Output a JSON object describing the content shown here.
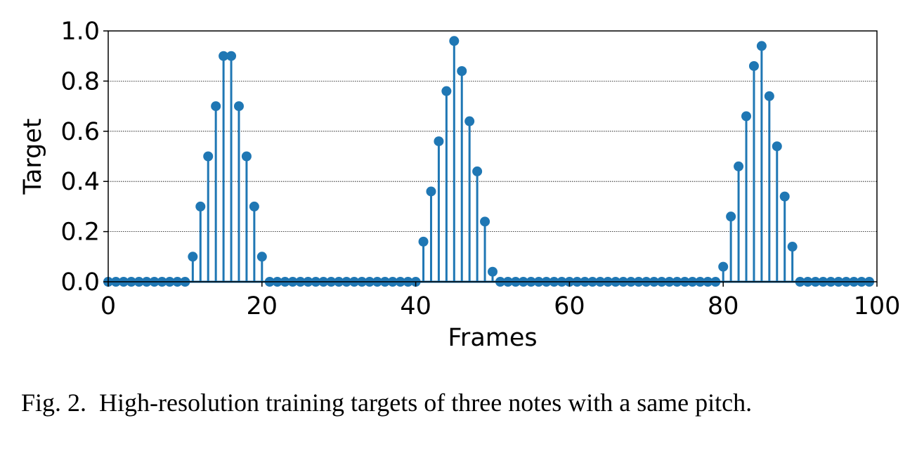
{
  "chart_data": {
    "type": "stem",
    "xlabel": "Frames",
    "ylabel": "Target",
    "xlim": [
      0,
      100
    ],
    "ylim": [
      0,
      1.0
    ],
    "x_ticks": [
      "0",
      "20",
      "40",
      "60",
      "80",
      "100"
    ],
    "y_ticks": [
      "0.0",
      "0.2",
      "0.4",
      "0.6",
      "0.8",
      "1.0"
    ],
    "grid": "horizontal dotted",
    "color": "#1f77b4",
    "x": [
      0,
      1,
      2,
      3,
      4,
      5,
      6,
      7,
      8,
      9,
      10,
      11,
      12,
      13,
      14,
      15,
      16,
      17,
      18,
      19,
      20,
      21,
      22,
      23,
      24,
      25,
      26,
      27,
      28,
      29,
      30,
      31,
      32,
      33,
      34,
      35,
      36,
      37,
      38,
      39,
      40,
      41,
      42,
      43,
      44,
      45,
      46,
      47,
      48,
      49,
      50,
      51,
      52,
      53,
      54,
      55,
      56,
      57,
      58,
      59,
      60,
      61,
      62,
      63,
      64,
      65,
      66,
      67,
      68,
      69,
      70,
      71,
      72,
      73,
      74,
      75,
      76,
      77,
      78,
      79,
      80,
      81,
      82,
      83,
      84,
      85,
      86,
      87,
      88,
      89,
      90,
      91,
      92,
      93,
      94,
      95,
      96,
      97,
      98,
      99
    ],
    "values": [
      0,
      0,
      0,
      0,
      0,
      0,
      0,
      0,
      0,
      0,
      0,
      0.1,
      0.3,
      0.5,
      0.7,
      0.9,
      0.9,
      0.7,
      0.5,
      0.3,
      0.1,
      0,
      0,
      0,
      0,
      0,
      0,
      0,
      0,
      0,
      0,
      0,
      0,
      0,
      0,
      0,
      0,
      0,
      0,
      0,
      0,
      0.16,
      0.36,
      0.56,
      0.76,
      0.96,
      0.84,
      0.64,
      0.44,
      0.24,
      0.04,
      0,
      0,
      0,
      0,
      0,
      0,
      0,
      0,
      0,
      0,
      0,
      0,
      0,
      0,
      0,
      0,
      0,
      0,
      0,
      0,
      0,
      0,
      0,
      0,
      0,
      0,
      0,
      0,
      0,
      0.06,
      0.26,
      0.46,
      0.66,
      0.86,
      0.94,
      0.74,
      0.54,
      0.34,
      0.14,
      0,
      0,
      0,
      0,
      0,
      0,
      0,
      0,
      0,
      0
    ]
  },
  "caption": {
    "label": "Fig. 2.",
    "text": "High-resolution training targets of three notes with a same pitch."
  }
}
